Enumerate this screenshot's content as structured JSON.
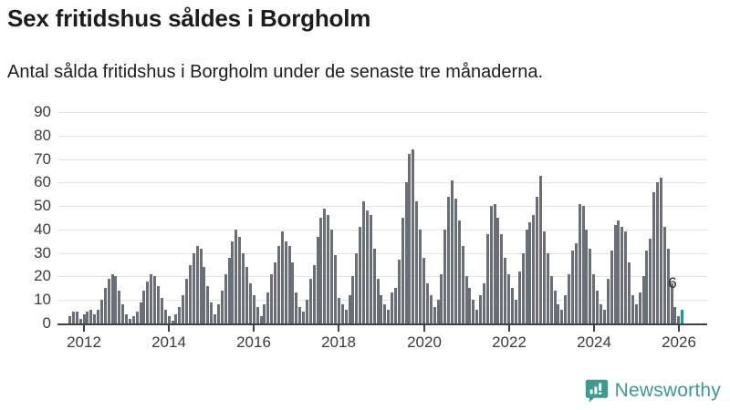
{
  "header": {
    "title": "Sex fritidshus såldes i Borgholm",
    "subtitle": "Antal sålda fritidshus i Borgholm under de senaste tre månaderna."
  },
  "watermark": {
    "label": "Newsworthy",
    "icon": "newsworthy-speech-bubble-chart-icon",
    "color": "#3a9b8e"
  },
  "chart_data": {
    "type": "bar",
    "title": "Sex fritidshus såldes i Borgholm",
    "subtitle": "Antal sålda fritidshus i Borgholm under de senaste tre månaderna.",
    "xlabel": "",
    "ylabel": "",
    "ylim": [
      0,
      90
    ],
    "yticks": [
      0,
      10,
      20,
      30,
      40,
      50,
      60,
      70,
      80,
      90
    ],
    "x_tick_years": [
      "2012",
      "2014",
      "2016",
      "2018",
      "2020",
      "2022",
      "2024",
      "2026"
    ],
    "x_start_offset_months": 4,
    "months_per_year_tick": 24,
    "grid": "horizontal",
    "legend": "none",
    "bar_color": "#6A6F77",
    "values": [
      3,
      5,
      5,
      2,
      4,
      5,
      6,
      4,
      6,
      10,
      15,
      19,
      21,
      20,
      14,
      8,
      4,
      2,
      3,
      5,
      9,
      14,
      18,
      21,
      20,
      16,
      11,
      6,
      3,
      1,
      4,
      7,
      12,
      19,
      25,
      30,
      33,
      32,
      24,
      16,
      9,
      4,
      8,
      14,
      21,
      28,
      35,
      40,
      37,
      30,
      24,
      17,
      12,
      7,
      3,
      8,
      13,
      21,
      26,
      33,
      39,
      35,
      33,
      26,
      13,
      7,
      5,
      10,
      19,
      25,
      37,
      45,
      49,
      46,
      40,
      29,
      11,
      8,
      6,
      12,
      20,
      30,
      41,
      52,
      48,
      46,
      32,
      19,
      12,
      8,
      6,
      13,
      15,
      27,
      45,
      60,
      72,
      74,
      52,
      40,
      28,
      17,
      12,
      7,
      10,
      21,
      40,
      54,
      61,
      53,
      44,
      33,
      20,
      15,
      10,
      6,
      12,
      17,
      38,
      50,
      51,
      45,
      38,
      28,
      21,
      15,
      10,
      22,
      30,
      40,
      43,
      46,
      54,
      63,
      39,
      30,
      20,
      14,
      8,
      6,
      12,
      21,
      31,
      34,
      51,
      50,
      40,
      32,
      21,
      14,
      8,
      6,
      19,
      31,
      42,
      44,
      41,
      39,
      26,
      12,
      8,
      13,
      20,
      31,
      36,
      56,
      60,
      62,
      41,
      32,
      17,
      7,
      3,
      6
    ],
    "highlight": {
      "index": 173,
      "value": 6,
      "label": "6",
      "color": "#0BA1A3"
    }
  }
}
